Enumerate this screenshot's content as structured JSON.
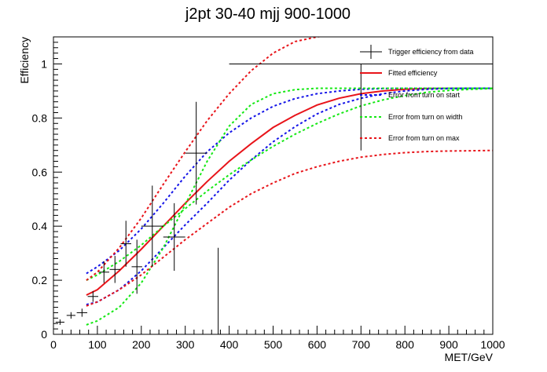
{
  "chart_data": {
    "type": "scatter",
    "title": "j2pt 30-40 mjj 900-1000",
    "xlabel": "MET/GeV",
    "ylabel": "Efficiency",
    "xlim": [
      0,
      1000
    ],
    "ylim": [
      0,
      1.1
    ],
    "x_ticks": [
      0,
      100,
      200,
      300,
      400,
      500,
      600,
      700,
      800,
      900,
      1000
    ],
    "y_ticks": [
      0,
      0.2,
      0.4,
      0.6,
      0.8,
      1
    ],
    "y_tick_labels": [
      "0",
      "0.2",
      "0.4",
      "0.6",
      "0.8",
      "1"
    ],
    "grid": false,
    "legend_position": "top-right",
    "legend": [
      {
        "label": "Trigger efficiency from data",
        "style": "errorbar",
        "color": "#000000"
      },
      {
        "label": "Fitted efficiency",
        "style": "solid",
        "color": "#e8141a"
      },
      {
        "label": "Error from turn on start",
        "style": "dashed",
        "color": "#1414e8"
      },
      {
        "label": "Error from turn on width",
        "style": "dashed",
        "color": "#14e814"
      },
      {
        "label": "Error from turn on max",
        "style": "dashed",
        "color": "#e8141a"
      }
    ],
    "points": [
      {
        "x": 15,
        "y": 0.045,
        "xerr": 10,
        "ylo": 0.01,
        "yhi": 0.01
      },
      {
        "x": 40,
        "y": 0.07,
        "xerr": 10,
        "ylo": 0.012,
        "yhi": 0.012
      },
      {
        "x": 65,
        "y": 0.08,
        "xerr": 12,
        "ylo": 0.015,
        "yhi": 0.015
      },
      {
        "x": 90,
        "y": 0.14,
        "xerr": 12,
        "ylo": 0.02,
        "yhi": 0.02
      },
      {
        "x": 115,
        "y": 0.23,
        "xerr": 12,
        "ylo": 0.04,
        "yhi": 0.04
      },
      {
        "x": 140,
        "y": 0.24,
        "xerr": 12,
        "ylo": 0.05,
        "yhi": 0.05
      },
      {
        "x": 165,
        "y": 0.335,
        "xerr": 12,
        "ylo": 0.085,
        "yhi": 0.085
      },
      {
        "x": 190,
        "y": 0.25,
        "xerr": 12,
        "ylo": 0.1,
        "yhi": 0.1
      },
      {
        "x": 225,
        "y": 0.4,
        "xerr": 25,
        "ylo": 0.15,
        "yhi": 0.15
      },
      {
        "x": 275,
        "y": 0.36,
        "xerr": 25,
        "ylo": 0.125,
        "yhi": 0.125
      },
      {
        "x": 325,
        "y": 0.67,
        "xerr": 25,
        "ylo": 0.19,
        "yhi": 0.19
      },
      {
        "x": 375,
        "y": 0.0,
        "xerr": 0,
        "ylo": 0.0,
        "yhi": 0.32
      },
      {
        "x": 700,
        "y": 1.0,
        "xerr": 300,
        "ylo": 0.32,
        "yhi": 0.0
      }
    ],
    "series": [
      {
        "label": "Fitted efficiency",
        "color": "#e8141a",
        "style": "solid",
        "x": [
          75,
          100,
          150,
          200,
          250,
          300,
          350,
          400,
          450,
          500,
          550,
          600,
          650,
          700,
          750,
          800,
          850,
          900,
          950,
          1000
        ],
        "y": [
          0.145,
          0.165,
          0.235,
          0.315,
          0.4,
          0.485,
          0.565,
          0.64,
          0.705,
          0.765,
          0.81,
          0.848,
          0.873,
          0.89,
          0.9,
          0.906,
          0.909,
          0.91,
          0.91,
          0.91
        ]
      },
      {
        "label": "Error from turn on start",
        "color": "#1414e8",
        "style": "dashed",
        "x": [
          75,
          100,
          150,
          200,
          250,
          300,
          350,
          400,
          450,
          500,
          550,
          600,
          650,
          700,
          750,
          800,
          850,
          900,
          950,
          1000
        ],
        "y": [
          0.225,
          0.25,
          0.31,
          0.39,
          0.485,
          0.585,
          0.675,
          0.745,
          0.8,
          0.843,
          0.872,
          0.89,
          0.9,
          0.906,
          0.909,
          0.91,
          0.91,
          0.91,
          0.91,
          0.91
        ]
      },
      {
        "label": "Error from turn on start",
        "color": "#1414e8",
        "style": "dashed",
        "x": [
          75,
          100,
          150,
          200,
          250,
          300,
          350,
          400,
          450,
          500,
          550,
          600,
          650,
          700,
          750,
          800,
          850,
          900,
          950,
          1000
        ],
        "y": [
          0.11,
          0.12,
          0.165,
          0.235,
          0.32,
          0.405,
          0.485,
          0.57,
          0.645,
          0.712,
          0.768,
          0.815,
          0.85,
          0.873,
          0.89,
          0.9,
          0.906,
          0.909,
          0.91,
          0.91
        ]
      },
      {
        "label": "Error from turn on width",
        "color": "#14e814",
        "style": "dashed",
        "x": [
          75,
          100,
          150,
          200,
          250,
          300,
          350,
          400,
          450,
          500,
          550,
          600,
          650,
          700,
          750,
          800,
          850,
          900,
          950,
          1000
        ],
        "y": [
          0.035,
          0.05,
          0.1,
          0.19,
          0.32,
          0.48,
          0.64,
          0.77,
          0.85,
          0.89,
          0.905,
          0.91,
          0.91,
          0.91,
          0.91,
          0.91,
          0.91,
          0.91,
          0.91,
          0.91
        ]
      },
      {
        "label": "Error from turn on width",
        "color": "#14e814",
        "style": "dashed",
        "x": [
          75,
          100,
          150,
          200,
          250,
          300,
          350,
          400,
          450,
          500,
          550,
          600,
          650,
          700,
          750,
          800,
          850,
          900,
          950,
          1000
        ],
        "y": [
          0.2,
          0.22,
          0.27,
          0.33,
          0.4,
          0.465,
          0.53,
          0.59,
          0.645,
          0.695,
          0.74,
          0.78,
          0.815,
          0.845,
          0.867,
          0.883,
          0.895,
          0.902,
          0.906,
          0.909
        ]
      },
      {
        "label": "Error from turn on max",
        "color": "#e8141a",
        "style": "dashed",
        "x": [
          75,
          100,
          150,
          200,
          250,
          300,
          350,
          400,
          450,
          500,
          550,
          600,
          650,
          700
        ],
        "y": [
          0.2,
          0.23,
          0.32,
          0.43,
          0.555,
          0.675,
          0.79,
          0.89,
          0.975,
          1.04,
          1.083,
          1.1,
          1.112,
          1.12
        ]
      },
      {
        "label": "Error from turn on max",
        "color": "#e8141a",
        "style": "dashed",
        "x": [
          75,
          100,
          150,
          200,
          250,
          300,
          350,
          400,
          450,
          500,
          550,
          600,
          650,
          700,
          750,
          800,
          850,
          900,
          950,
          1000
        ],
        "y": [
          0.105,
          0.12,
          0.165,
          0.22,
          0.285,
          0.35,
          0.41,
          0.47,
          0.52,
          0.56,
          0.595,
          0.62,
          0.64,
          0.655,
          0.665,
          0.672,
          0.676,
          0.678,
          0.679,
          0.68
        ]
      }
    ]
  }
}
